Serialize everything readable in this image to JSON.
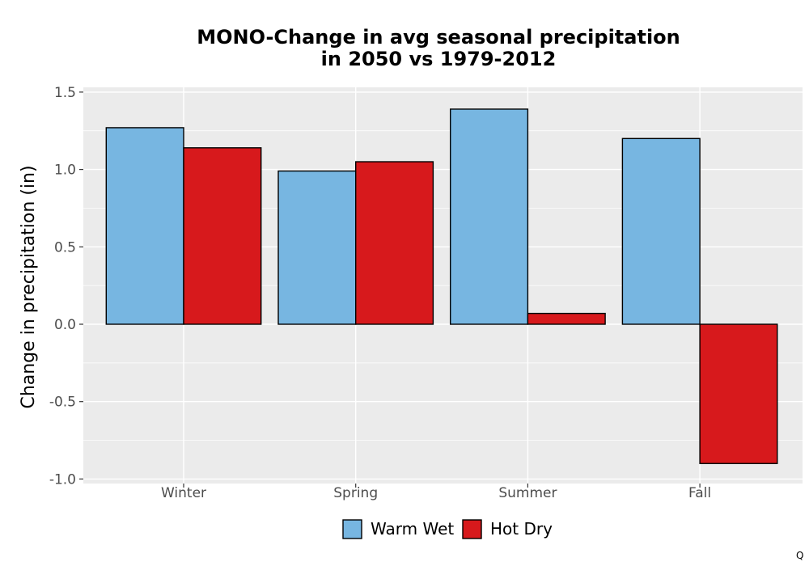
{
  "chart_data": {
    "type": "bar",
    "title_lines": [
      "MONO-Change in avg seasonal precipitation",
      "in 2050 vs 1979-2012"
    ],
    "xlabel": "",
    "ylabel": "Change in precipitation (in)",
    "categories": [
      "Winter",
      "Spring",
      "Summer",
      "Fall"
    ],
    "series": [
      {
        "name": "Warm Wet",
        "color": "#77b6e1",
        "values": [
          1.27,
          0.99,
          1.39,
          1.2
        ]
      },
      {
        "name": "Hot Dry",
        "color": "#d7191c",
        "values": [
          1.14,
          1.05,
          0.07,
          -0.9
        ]
      }
    ],
    "ylim": [
      -1.0,
      1.5
    ],
    "yticks": [
      "-1.0",
      "-0.5",
      "0.0",
      "0.5",
      "1.0",
      "1.5"
    ],
    "grid": true,
    "legend_position": "bottom",
    "panel_background": "#ebebeb",
    "corner_mark": "Q"
  }
}
